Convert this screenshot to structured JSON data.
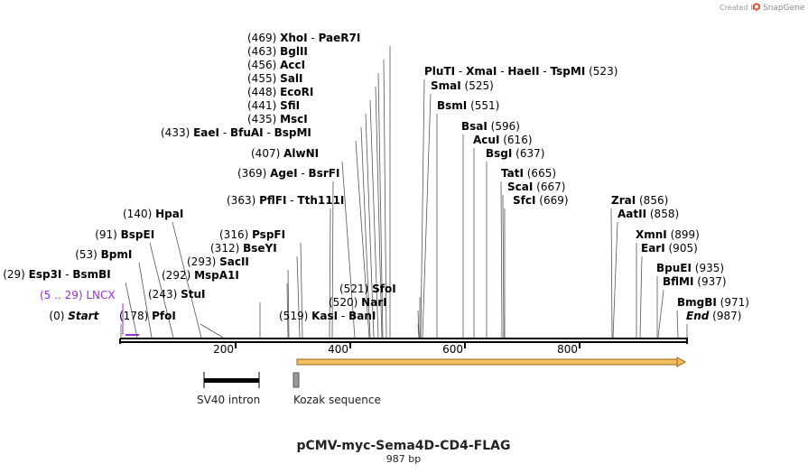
{
  "credit": {
    "prefix": "Created by",
    "brand": "SnapGene"
  },
  "map": {
    "title": "pCMV-myc-Sema4D-CD4-FLAG",
    "length_label": "987 bp",
    "total_bp": 987,
    "ticks": [
      200,
      400,
      600,
      800
    ]
  },
  "sites": [
    {
      "pos": "(469)",
      "names": [
        "XhoI",
        "PaeR7I"
      ],
      "bp": 469,
      "num_first": true
    },
    {
      "pos": "(463)",
      "names": [
        "BglII"
      ],
      "bp": 463,
      "num_first": true
    },
    {
      "pos": "(456)",
      "names": [
        "AccI"
      ],
      "bp": 456,
      "num_first": true
    },
    {
      "pos": "(455)",
      "names": [
        "SalI"
      ],
      "bp": 455,
      "num_first": true
    },
    {
      "pos": "(448)",
      "names": [
        "EcoRI"
      ],
      "bp": 448,
      "num_first": true
    },
    {
      "pos": "(441)",
      "names": [
        "SfiI"
      ],
      "bp": 441,
      "num_first": true
    },
    {
      "pos": "(435)",
      "names": [
        "MscI"
      ],
      "bp": 435,
      "num_first": true
    },
    {
      "pos": "(433)",
      "names": [
        "EaeI",
        "BfuAI",
        "BspMI"
      ],
      "bp": 433,
      "num_first": true
    },
    {
      "pos": "(407)",
      "names": [
        "AlwNI"
      ],
      "bp": 407,
      "num_first": true
    },
    {
      "pos": "(369)",
      "names": [
        "AgeI",
        "BsrFI"
      ],
      "bp": 369,
      "num_first": true
    },
    {
      "pos": "(363)",
      "names": [
        "PflFI",
        "Tth111I"
      ],
      "bp": 363,
      "num_first": true
    },
    {
      "pos": "(140)",
      "names": [
        "HpaI"
      ],
      "bp": 140,
      "num_first": true
    },
    {
      "pos": "(91)",
      "names": [
        "BspEI"
      ],
      "bp": 91,
      "num_first": true
    },
    {
      "pos": "(53)",
      "names": [
        "BpmI"
      ],
      "bp": 53,
      "num_first": true
    },
    {
      "pos": "(29)",
      "names": [
        "Esp3I",
        "BsmBI"
      ],
      "bp": 29,
      "num_first": true
    },
    {
      "pos": "(316)",
      "names": [
        "PspFI"
      ],
      "bp": 316,
      "num_first": true
    },
    {
      "pos": "(312)",
      "names": [
        "BseYI"
      ],
      "bp": 312,
      "num_first": true
    },
    {
      "pos": "(293)",
      "names": [
        "SacII"
      ],
      "bp": 293,
      "num_first": true
    },
    {
      "pos": "(292)",
      "names": [
        "MspA1I"
      ],
      "bp": 292,
      "num_first": true
    },
    {
      "pos": "(243)",
      "names": [
        "StuI"
      ],
      "bp": 243,
      "num_first": true
    },
    {
      "pos": "(178)",
      "names": [
        "PfoI"
      ],
      "bp": 178,
      "num_first": true
    },
    {
      "pos": "(0)",
      "names": [
        "Start"
      ],
      "bp": 0,
      "num_first": true,
      "italic": true
    },
    {
      "pos": "(521)",
      "names": [
        "SfoI"
      ],
      "bp": 521,
      "num_first": true
    },
    {
      "pos": "(520)",
      "names": [
        "NarI"
      ],
      "bp": 520,
      "num_first": true
    },
    {
      "pos": "(519)",
      "names": [
        "KasI",
        "BanI"
      ],
      "bp": 519,
      "num_first": true
    },
    {
      "pos": "(523)",
      "names": [
        "PluTI",
        "XmaI",
        "HaeII",
        "TspMI"
      ],
      "bp": 523,
      "num_first": false
    },
    {
      "pos": "(525)",
      "names": [
        "SmaI"
      ],
      "bp": 525,
      "num_first": false
    },
    {
      "pos": "(551)",
      "names": [
        "BsmI"
      ],
      "bp": 551,
      "num_first": false
    },
    {
      "pos": "(596)",
      "names": [
        "BsaI"
      ],
      "bp": 596,
      "num_first": false
    },
    {
      "pos": "(616)",
      "names": [
        "AcuI"
      ],
      "bp": 616,
      "num_first": false
    },
    {
      "pos": "(637)",
      "names": [
        "BsgI"
      ],
      "bp": 637,
      "num_first": false
    },
    {
      "pos": "(665)",
      "names": [
        "TatI"
      ],
      "bp": 665,
      "num_first": false
    },
    {
      "pos": "(667)",
      "names": [
        "ScaI"
      ],
      "bp": 667,
      "num_first": false
    },
    {
      "pos": "(669)",
      "names": [
        "SfcI"
      ],
      "bp": 669,
      "num_first": false
    },
    {
      "pos": "(856)",
      "names": [
        "ZraI"
      ],
      "bp": 856,
      "num_first": false
    },
    {
      "pos": "(858)",
      "names": [
        "AatII"
      ],
      "bp": 858,
      "num_first": false
    },
    {
      "pos": "(899)",
      "names": [
        "XmnI"
      ],
      "bp": 899,
      "num_first": false
    },
    {
      "pos": "(905)",
      "names": [
        "EarI"
      ],
      "bp": 905,
      "num_first": false
    },
    {
      "pos": "(935)",
      "names": [
        "BpuEI"
      ],
      "bp": 935,
      "num_first": false
    },
    {
      "pos": "(937)",
      "names": [
        "BflMI"
      ],
      "bp": 937,
      "num_first": false
    },
    {
      "pos": "(971)",
      "names": [
        "BmgBI"
      ],
      "bp": 971,
      "num_first": false
    },
    {
      "pos": "(987)",
      "names": [
        "End"
      ],
      "bp": 987,
      "num_first": false,
      "italic": true
    }
  ],
  "primer": {
    "pos": "(5 .. 29)",
    "name": "LNCX",
    "color": "#9b30d9",
    "start_bp": 5,
    "end_bp": 29
  },
  "features": [
    {
      "name": "SV40 intron",
      "type": "intron",
      "color": "#000000"
    },
    {
      "name": "Kozak sequence",
      "type": "misc",
      "color": "#999999"
    }
  ],
  "orf": {
    "start_bp": 305,
    "end_bp": 987,
    "color": "#f0c060",
    "stroke": "#a06010",
    "direction": "forward"
  },
  "colors": {
    "backbone": "#000000",
    "leader": "#555555",
    "brand": "#e8563a"
  }
}
